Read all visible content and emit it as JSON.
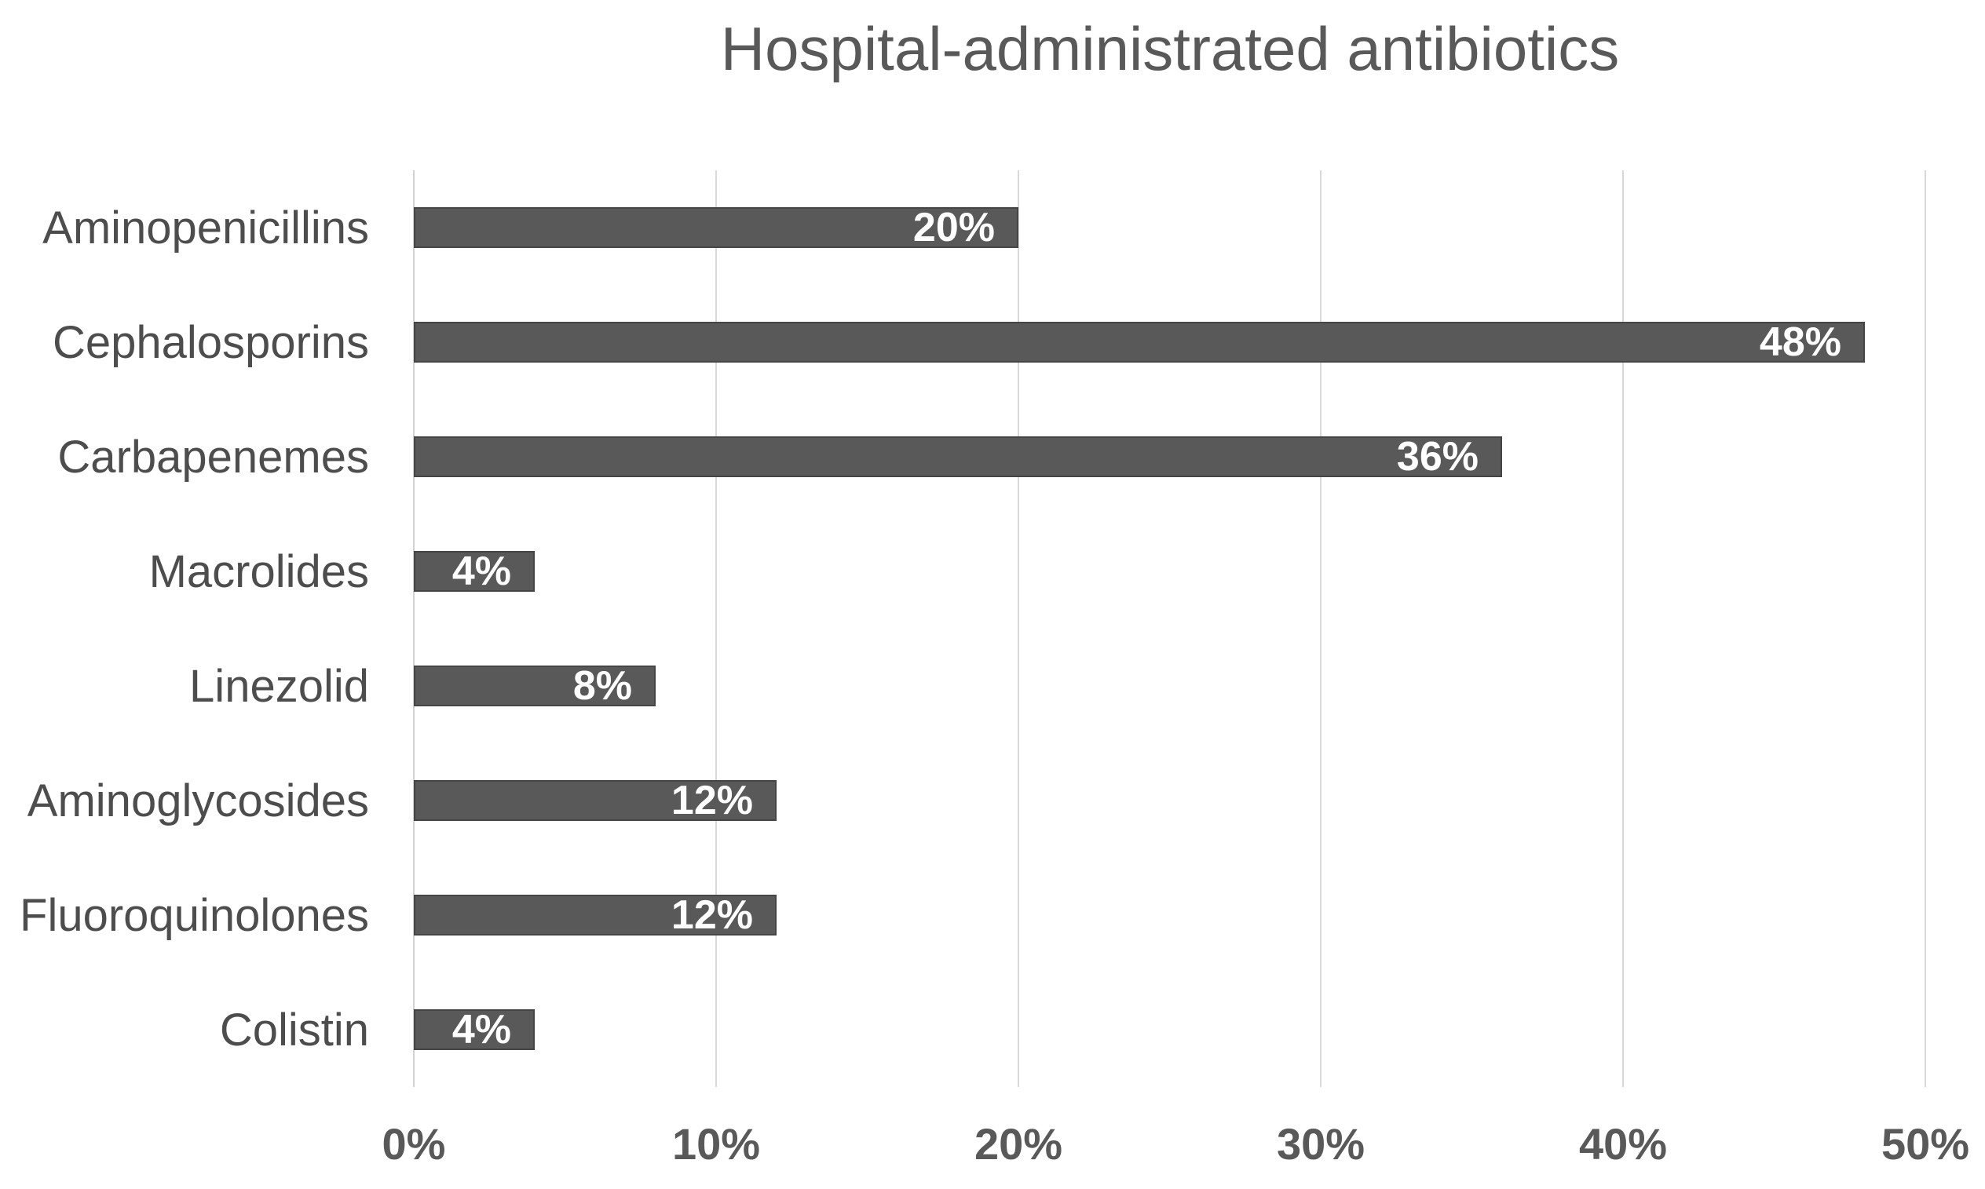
{
  "chart_data": {
    "type": "bar",
    "orientation": "horizontal",
    "title": "Hospital-administrated antibiotics",
    "categories": [
      "Aminopenicillins",
      "Cephalosporins",
      "Carbapenemes",
      "Macrolides",
      "Linezolid",
      "Aminoglycosides",
      "Fluoroquinolones",
      "Colistin"
    ],
    "values": [
      20,
      48,
      36,
      4,
      8,
      12,
      12,
      4
    ],
    "value_labels": [
      "20%",
      "48%",
      "36%",
      "4%",
      "8%",
      "12%",
      "12%",
      "4%"
    ],
    "x_ticks": [
      "0%",
      "10%",
      "20%",
      "30%",
      "40%",
      "50%"
    ],
    "x_tick_values": [
      0,
      10,
      20,
      30,
      40,
      50
    ],
    "xlim": [
      0,
      50
    ],
    "xlabel": "",
    "ylabel": "",
    "grid": "vertical-only",
    "legend": false,
    "data_labels_position": "inside-end",
    "colors": {
      "bar_fill": "#595959",
      "bar_border": "#454545",
      "data_label": "#ffffff",
      "gridline": "#d9d9d9",
      "axis_line": "#d2d2d2",
      "title": "#595959",
      "category_label": "#4d4d4d",
      "tick_label": "#595959",
      "background": "#ffffff"
    }
  }
}
